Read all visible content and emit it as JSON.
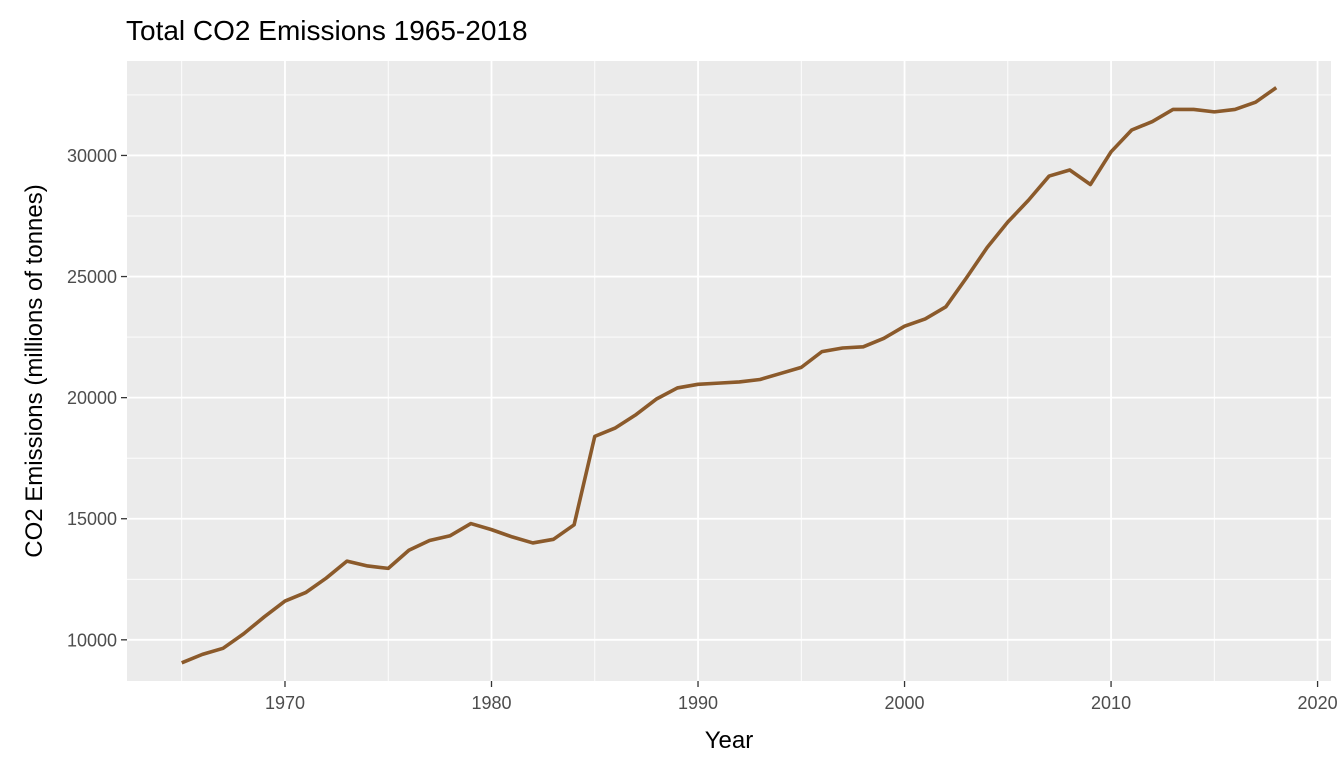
{
  "chart_data": {
    "type": "line",
    "title": "Total CO2 Emissions 1965-2018",
    "xlabel": "Year",
    "ylabel": "CO2 Emissions (millions of tonnes)",
    "xlim": [
      1962.35,
      2020.65
    ],
    "ylim": [
      8300,
      33900
    ],
    "xticks": [
      1970,
      1980,
      1990,
      2000,
      2010,
      2020
    ],
    "yticks": [
      10000,
      15000,
      20000,
      25000,
      30000
    ],
    "xtick_labels": [
      "1970",
      "1980",
      "1990",
      "2000",
      "2010",
      "2020"
    ],
    "ytick_labels": [
      "10000",
      "15000",
      "20000",
      "25000",
      "30000"
    ],
    "grid": true,
    "background": "#ebebeb",
    "grid_color": "#ffffff",
    "series": [
      {
        "color": "#8b5a2b",
        "x": [
          1965,
          1966,
          1967,
          1968,
          1969,
          1970,
          1971,
          1972,
          1973,
          1974,
          1975,
          1976,
          1977,
          1978,
          1979,
          1980,
          1981,
          1982,
          1983,
          1984,
          1985,
          1986,
          1987,
          1988,
          1989,
          1990,
          1991,
          1992,
          1993,
          1994,
          1995,
          1996,
          1997,
          1998,
          1999,
          2000,
          2001,
          2002,
          2003,
          2004,
          2005,
          2006,
          2007,
          2008,
          2009,
          2010,
          2011,
          2012,
          2013,
          2014,
          2015,
          2016,
          2017,
          2018
        ],
        "y": [
          9050,
          9400,
          9650,
          10250,
          10950,
          11600,
          11950,
          12550,
          13250,
          13050,
          12950,
          13700,
          14100,
          14300,
          14800,
          14550,
          14250,
          14000,
          14150,
          14750,
          18400,
          18750,
          19300,
          19950,
          20400,
          20550,
          20600,
          20650,
          20750,
          21000,
          21250,
          21900,
          22050,
          22100,
          22450,
          22950,
          23250,
          23750,
          24950,
          26200,
          27250,
          28150,
          29150,
          29400,
          28800,
          30150,
          31050,
          31400,
          31900,
          31900,
          31800,
          31900,
          32200,
          32800
        ]
      }
    ]
  }
}
